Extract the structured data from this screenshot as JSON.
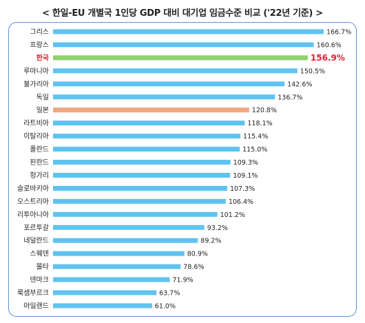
{
  "title": "< 한일-EU 개별국 1인당 GDP 대비 대기업 임금수준 비교 ('22년 기준) >",
  "colors": {
    "default_bar": "#5fc3ef",
    "korea_bar": "#8fd36b",
    "japan_bar": "#f0a683",
    "korea_label": "#e0212e",
    "frame": "#5b8fd6"
  },
  "chart_data": {
    "type": "bar",
    "orientation": "horizontal",
    "title": "< 한일-EU 개별국 1인당 GDP 대비 대기업 임금수준 비교 ('22년 기준) >",
    "unit": "%",
    "xlim": [
      0,
      170
    ],
    "grid": false,
    "categories": [
      "그리스",
      "프랑스",
      "한국",
      "루마니아",
      "불가리아",
      "독일",
      "일본",
      "라트비아",
      "이탈리아",
      "폴란드",
      "핀란드",
      "헝가리",
      "슬로바키아",
      "오스트리아",
      "리투아니아",
      "포르투갈",
      "네덜란드",
      "스웨덴",
      "몰타",
      "덴마크",
      "룩셈부르크",
      "아일랜드"
    ],
    "values": [
      166.7,
      160.6,
      156.9,
      150.5,
      142.6,
      136.7,
      120.8,
      118.1,
      115.4,
      115.0,
      109.3,
      109.1,
      107.3,
      106.4,
      101.2,
      93.2,
      89.2,
      80.9,
      78.6,
      71.9,
      63.7,
      61.0
    ],
    "value_labels": [
      "166.7%",
      "160.6%",
      "156.9%",
      "150.5%",
      "142.6%",
      "136.7%",
      "120.8%",
      "118.1%",
      "115.4%",
      "115.0%",
      "109.3%",
      "109.1%",
      "107.3%",
      "106.4%",
      "101.2%",
      "93.2%",
      "89.2%",
      "80.9%",
      "78.6%",
      "71.9%",
      "63.7%",
      "61.0%"
    ],
    "highlight": {
      "한국": "korea",
      "일본": "japan"
    }
  }
}
